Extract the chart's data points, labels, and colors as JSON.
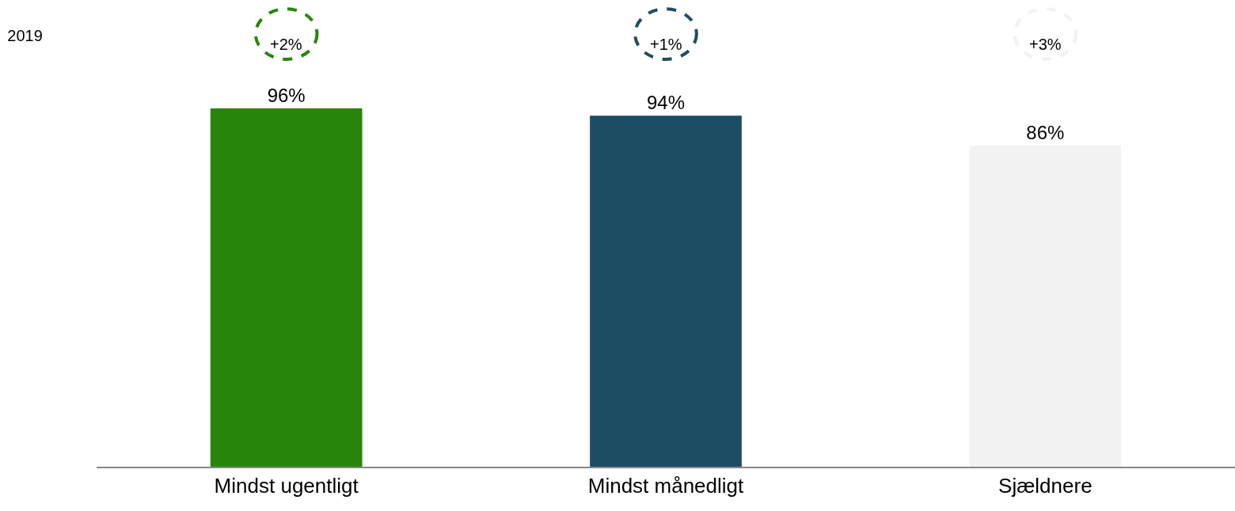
{
  "chart_data": {
    "type": "bar",
    "title": "2019",
    "categories": [
      "Mindst ugentligt",
      "Mindst månedligt",
      "Sjældnere"
    ],
    "values": [
      96,
      94,
      86
    ],
    "colors": [
      "#27860a",
      "#1d4d63",
      "#f2f2f2"
    ],
    "data_labels": true,
    "value_labels": [
      "96%",
      "94%",
      "86%"
    ],
    "ylim": [
      0,
      125
    ],
    "annotations": [
      "+2%",
      "+1%",
      "+3%"
    ]
  }
}
